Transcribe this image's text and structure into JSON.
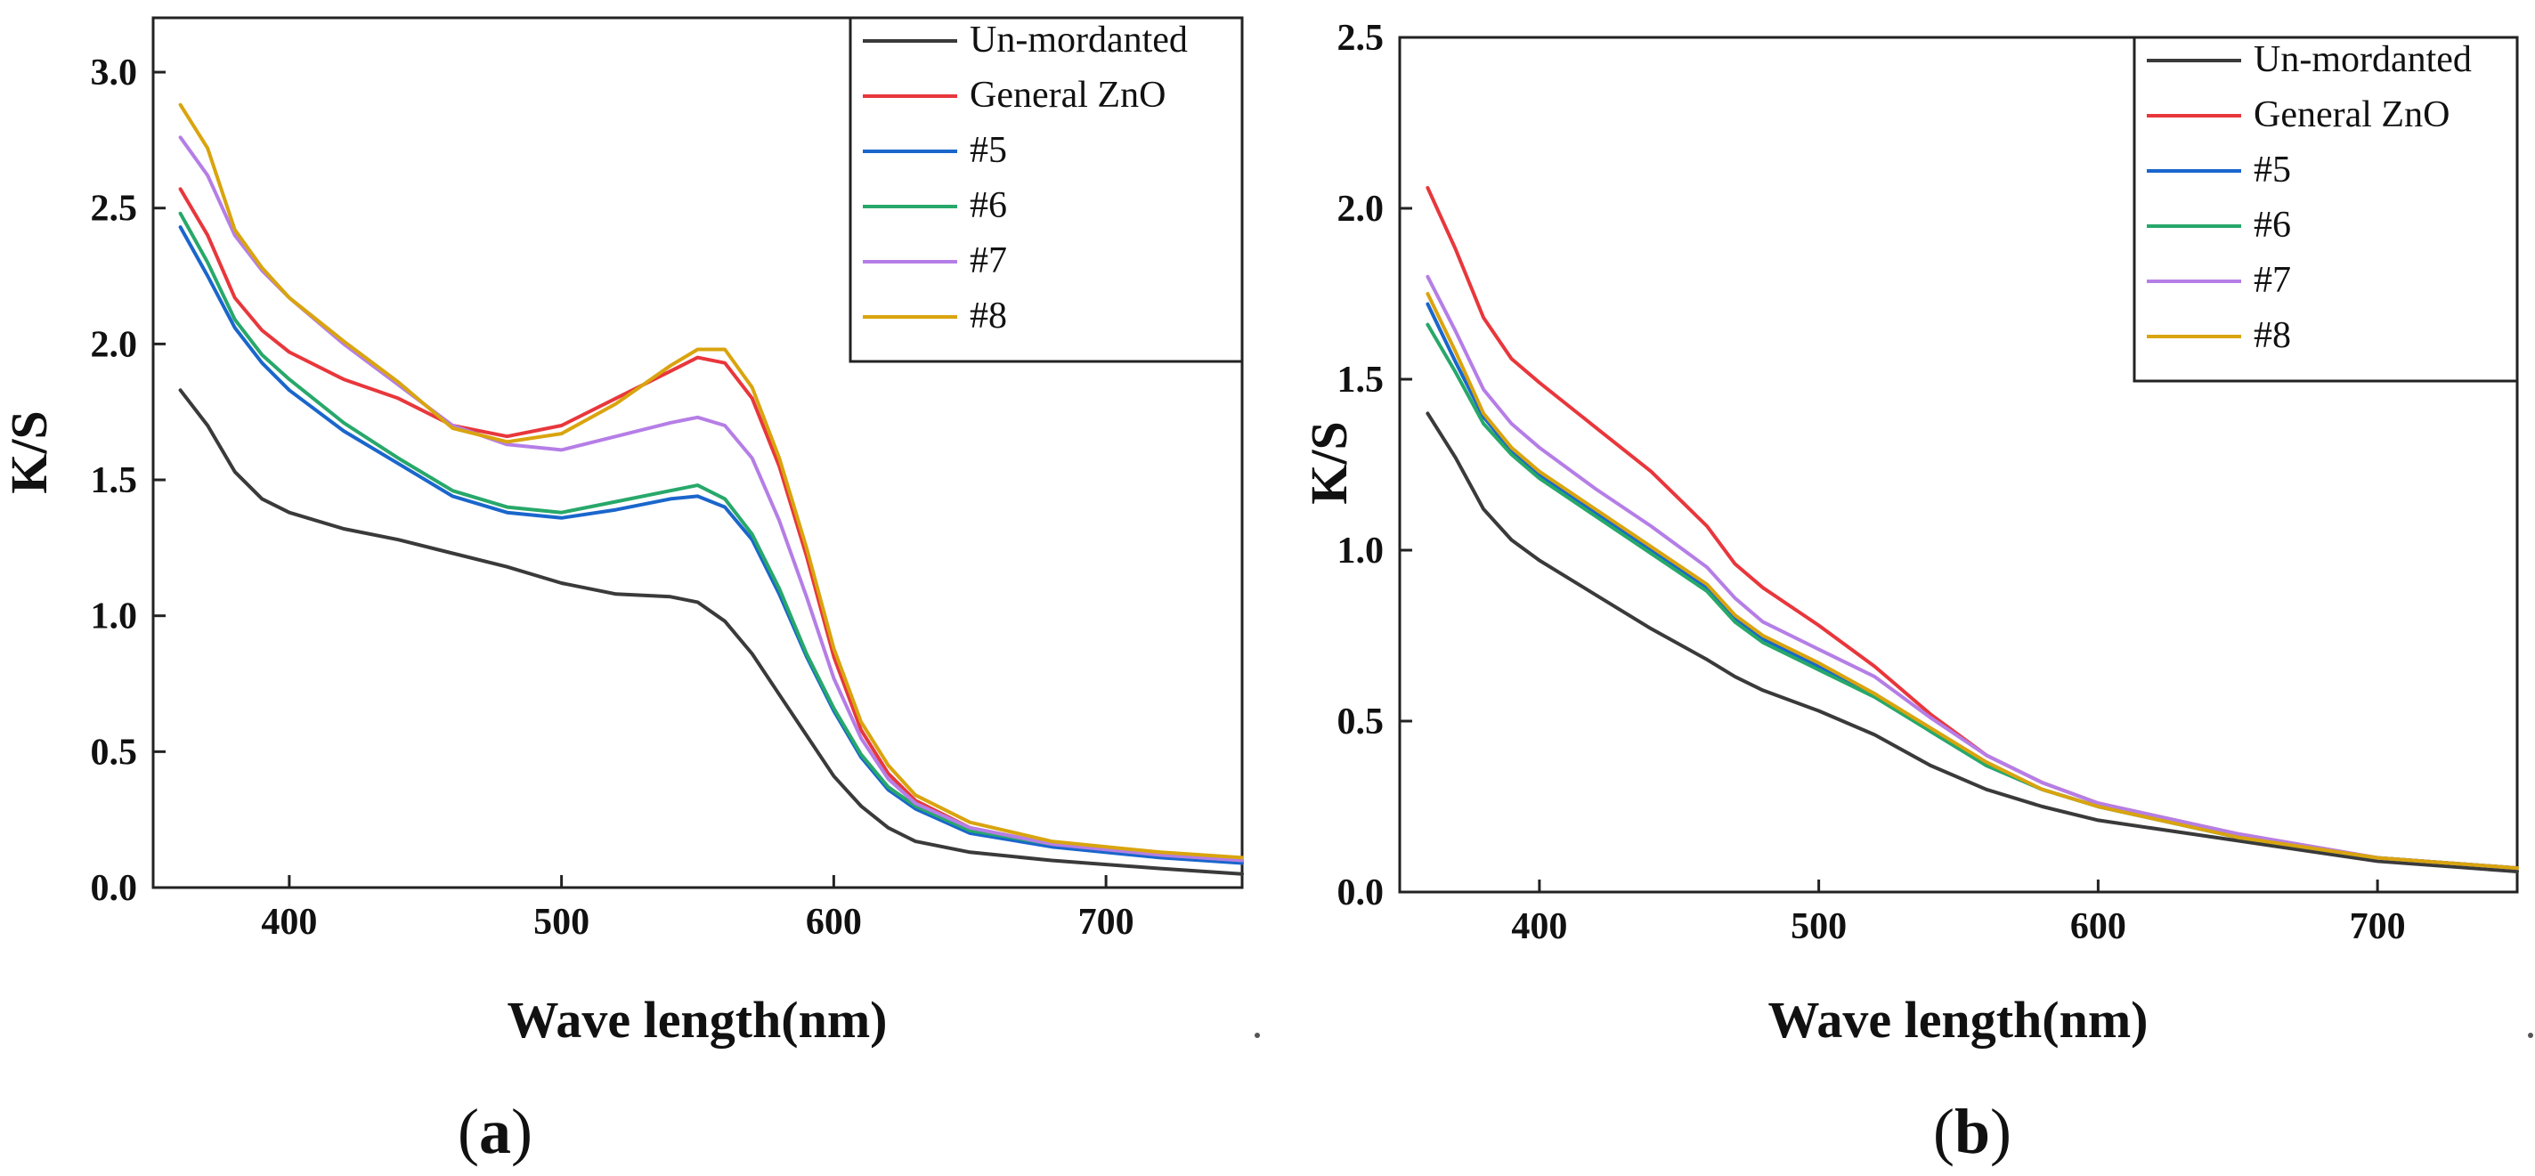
{
  "chart_data": [
    {
      "type": "line",
      "panel_label": "(a)",
      "panel_letter": "a",
      "xlabel": "Wave length(nm)",
      "ylabel": "K/S",
      "xlim": [
        350,
        750
      ],
      "ylim": [
        0,
        3.2
      ],
      "xticks": [
        400,
        500,
        600,
        700
      ],
      "yticks": [
        0.0,
        0.5,
        1.0,
        1.5,
        2.0,
        2.5,
        3.0
      ],
      "ytick_labels": [
        "0.0",
        "0.5",
        "1.0",
        "1.5",
        "2.0",
        "2.5",
        "3.0"
      ],
      "grid": false,
      "legend_position": "top-right",
      "x": [
        360,
        370,
        380,
        390,
        400,
        420,
        440,
        460,
        480,
        500,
        520,
        540,
        550,
        560,
        570,
        580,
        590,
        600,
        610,
        620,
        630,
        650,
        680,
        720,
        750
      ],
      "series": [
        {
          "name": "Un-mordanted",
          "color": "#3a3a3a",
          "values": [
            1.83,
            1.7,
            1.53,
            1.43,
            1.38,
            1.32,
            1.28,
            1.23,
            1.18,
            1.12,
            1.08,
            1.07,
            1.05,
            0.98,
            0.86,
            0.71,
            0.56,
            0.41,
            0.3,
            0.22,
            0.17,
            0.13,
            0.1,
            0.07,
            0.05
          ]
        },
        {
          "name": "General ZnO",
          "color": "#e8373c",
          "values": [
            2.57,
            2.4,
            2.17,
            2.05,
            1.97,
            1.87,
            1.8,
            1.7,
            1.66,
            1.7,
            1.8,
            1.9,
            1.95,
            1.93,
            1.8,
            1.55,
            1.22,
            0.85,
            0.58,
            0.42,
            0.32,
            0.22,
            0.16,
            0.12,
            0.1
          ]
        },
        {
          "name": "#5",
          "color": "#1a66cc",
          "values": [
            2.43,
            2.25,
            2.06,
            1.93,
            1.83,
            1.68,
            1.56,
            1.44,
            1.38,
            1.36,
            1.39,
            1.43,
            1.44,
            1.4,
            1.28,
            1.08,
            0.85,
            0.65,
            0.48,
            0.36,
            0.29,
            0.2,
            0.15,
            0.11,
            0.09
          ]
        },
        {
          "name": "#6",
          "color": "#27a86a",
          "values": [
            2.48,
            2.3,
            2.09,
            1.96,
            1.87,
            1.71,
            1.58,
            1.46,
            1.4,
            1.38,
            1.42,
            1.46,
            1.48,
            1.43,
            1.3,
            1.1,
            0.86,
            0.66,
            0.49,
            0.37,
            0.3,
            0.21,
            0.16,
            0.12,
            0.1
          ]
        },
        {
          "name": "#7",
          "color": "#b57ee6",
          "values": [
            2.76,
            2.62,
            2.4,
            2.27,
            2.17,
            2.0,
            1.85,
            1.7,
            1.63,
            1.61,
            1.66,
            1.71,
            1.73,
            1.7,
            1.58,
            1.35,
            1.07,
            0.77,
            0.55,
            0.4,
            0.31,
            0.22,
            0.16,
            0.12,
            0.1
          ]
        },
        {
          "name": "#8",
          "color": "#d9a40e",
          "values": [
            2.88,
            2.72,
            2.42,
            2.28,
            2.17,
            2.01,
            1.86,
            1.69,
            1.64,
            1.67,
            1.78,
            1.92,
            1.98,
            1.98,
            1.84,
            1.58,
            1.25,
            0.88,
            0.61,
            0.45,
            0.34,
            0.24,
            0.17,
            0.13,
            0.11
          ]
        }
      ]
    },
    {
      "type": "line",
      "panel_label": "(b)",
      "panel_letter": "b",
      "xlabel": "Wave length(nm)",
      "ylabel": "K/S",
      "xlim": [
        350,
        750
      ],
      "ylim": [
        0,
        2.5
      ],
      "xticks": [
        400,
        500,
        600,
        700
      ],
      "yticks": [
        0.0,
        0.5,
        1.0,
        1.5,
        2.0,
        2.5
      ],
      "ytick_labels": [
        "0.0",
        "0.5",
        "1.0",
        "1.5",
        "2.0",
        "2.5"
      ],
      "grid": false,
      "legend_position": "top-right",
      "x": [
        360,
        370,
        380,
        390,
        400,
        420,
        440,
        460,
        470,
        480,
        500,
        520,
        540,
        560,
        580,
        600,
        650,
        700,
        750
      ],
      "series": [
        {
          "name": "Un-mordanted",
          "color": "#3a3a3a",
          "values": [
            1.4,
            1.27,
            1.12,
            1.03,
            0.97,
            0.87,
            0.77,
            0.68,
            0.63,
            0.59,
            0.53,
            0.46,
            0.37,
            0.3,
            0.25,
            0.21,
            0.15,
            0.09,
            0.06
          ]
        },
        {
          "name": "General ZnO",
          "color": "#e8373c",
          "values": [
            2.06,
            1.88,
            1.68,
            1.56,
            1.49,
            1.36,
            1.23,
            1.07,
            0.96,
            0.89,
            0.78,
            0.66,
            0.52,
            0.4,
            0.32,
            0.26,
            0.17,
            0.1,
            0.07
          ]
        },
        {
          "name": "#5",
          "color": "#1a66cc",
          "values": [
            1.72,
            1.55,
            1.39,
            1.29,
            1.22,
            1.11,
            1.0,
            0.89,
            0.8,
            0.74,
            0.66,
            0.58,
            0.47,
            0.37,
            0.3,
            0.25,
            0.16,
            0.1,
            0.07
          ]
        },
        {
          "name": "#6",
          "color": "#27a86a",
          "values": [
            1.66,
            1.52,
            1.37,
            1.28,
            1.21,
            1.1,
            0.99,
            0.88,
            0.79,
            0.73,
            0.65,
            0.57,
            0.47,
            0.37,
            0.3,
            0.25,
            0.16,
            0.1,
            0.07
          ]
        },
        {
          "name": "#7",
          "color": "#b57ee6",
          "values": [
            1.8,
            1.64,
            1.47,
            1.37,
            1.3,
            1.18,
            1.07,
            0.95,
            0.86,
            0.79,
            0.71,
            0.63,
            0.51,
            0.4,
            0.32,
            0.26,
            0.17,
            0.1,
            0.07
          ]
        },
        {
          "name": "#8",
          "color": "#d9a40e",
          "values": [
            1.75,
            1.58,
            1.4,
            1.3,
            1.23,
            1.12,
            1.01,
            0.9,
            0.81,
            0.75,
            0.67,
            0.58,
            0.48,
            0.38,
            0.3,
            0.25,
            0.16,
            0.1,
            0.07
          ]
        }
      ]
    }
  ]
}
